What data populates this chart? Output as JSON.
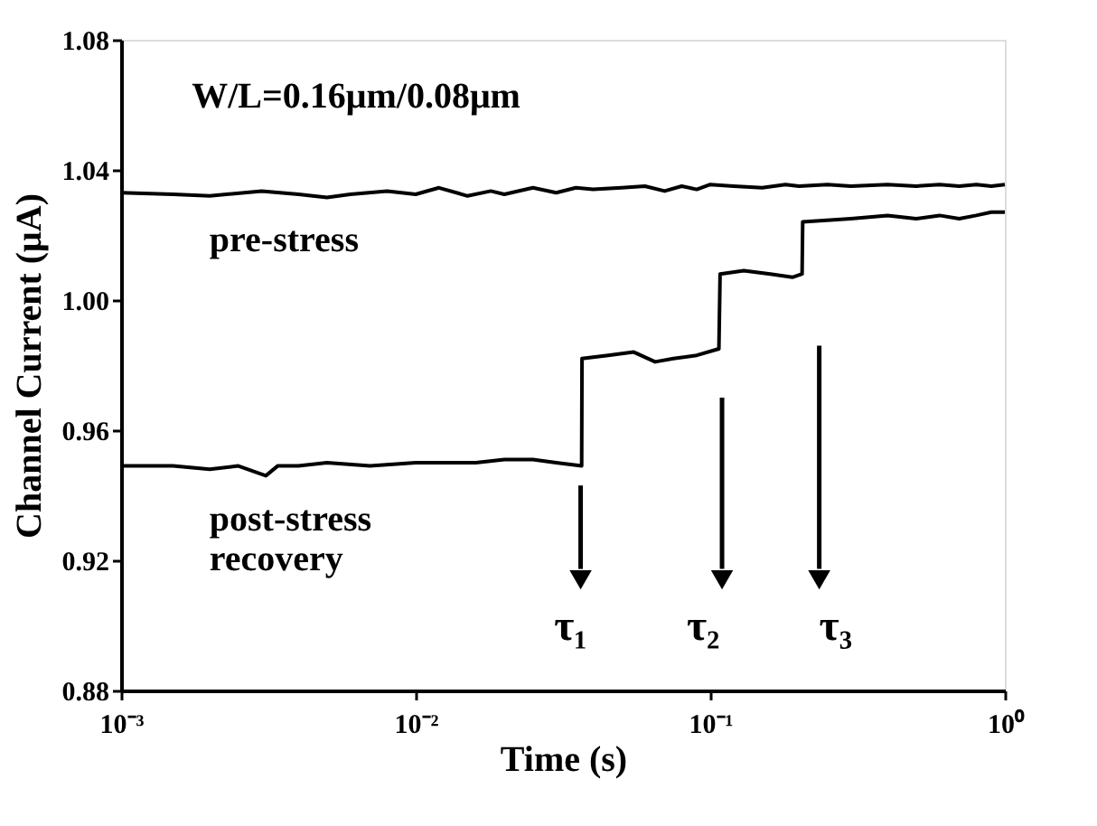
{
  "chart_data": {
    "type": "line",
    "xlabel": "Time (s)",
    "ylabel": "Channel Current (μA)",
    "log": "x",
    "grid": false,
    "marker": "none",
    "line_style": "solid",
    "xlim": [
      0.001,
      1.0
    ],
    "ylim": [
      0.88,
      1.08
    ],
    "xticks": [
      {
        "value": 0.001,
        "label": "10⁻³"
      },
      {
        "value": 0.01,
        "label": "10⁻²"
      },
      {
        "value": 0.1,
        "label": "10⁻¹"
      },
      {
        "value": 1.0,
        "label": "10⁰"
      }
    ],
    "yticks": [
      0.88,
      0.92,
      0.96,
      {
        "value": 1.0,
        "label": "1.00"
      },
      1.04,
      1.08
    ],
    "series": [
      {
        "color": "#000000",
        "x": [
          0.001,
          0.0015,
          0.002,
          0.003,
          0.004,
          0.005,
          0.006,
          0.008,
          0.01,
          0.012,
          0.015,
          0.018,
          0.02,
          0.025,
          0.03,
          0.035,
          0.04,
          0.05,
          0.06,
          0.07,
          0.08,
          0.09,
          0.1,
          0.12,
          0.15,
          0.18,
          0.2,
          0.25,
          0.3,
          0.4,
          0.5,
          0.6,
          0.7,
          0.8,
          0.9,
          1.0
        ],
        "values": [
          1.033,
          1.0325,
          1.032,
          1.0335,
          1.0325,
          1.0315,
          1.0325,
          1.0335,
          1.0325,
          1.0345,
          1.032,
          1.0335,
          1.0325,
          1.0345,
          1.033,
          1.0345,
          1.034,
          1.0345,
          1.035,
          1.0335,
          1.035,
          1.034,
          1.0355,
          1.035,
          1.0345,
          1.0355,
          1.035,
          1.0355,
          1.035,
          1.0355,
          1.035,
          1.0355,
          1.035,
          1.0355,
          1.035,
          1.0355
        ]
      },
      {
        "color": "#000000",
        "x": [
          0.001,
          0.0015,
          0.002,
          0.0025,
          0.0031,
          0.0034,
          0.004,
          0.005,
          0.007,
          0.01,
          0.013,
          0.016,
          0.02,
          0.025,
          0.03,
          0.0366,
          0.0367,
          0.045,
          0.055,
          0.065,
          0.075,
          0.09,
          0.107,
          0.108,
          0.13,
          0.16,
          0.19,
          0.205,
          0.206,
          0.3,
          0.4,
          0.5,
          0.6,
          0.7,
          0.8,
          0.9,
          1.0
        ],
        "values": [
          0.949,
          0.949,
          0.948,
          0.949,
          0.946,
          0.949,
          0.949,
          0.95,
          0.949,
          0.95,
          0.95,
          0.95,
          0.951,
          0.951,
          0.95,
          0.949,
          0.982,
          0.983,
          0.984,
          0.981,
          0.982,
          0.983,
          0.985,
          1.008,
          1.009,
          1.008,
          1.007,
          1.008,
          1.024,
          1.025,
          1.026,
          1.025,
          1.026,
          1.025,
          1.026,
          1.027,
          1.027
        ]
      }
    ],
    "annotations": [
      "W/L=0.16μm/0.08μm",
      "pre-stress",
      "post-stress\nrecovery",
      "τ₁",
      "τ₂",
      "τ₃"
    ]
  }
}
